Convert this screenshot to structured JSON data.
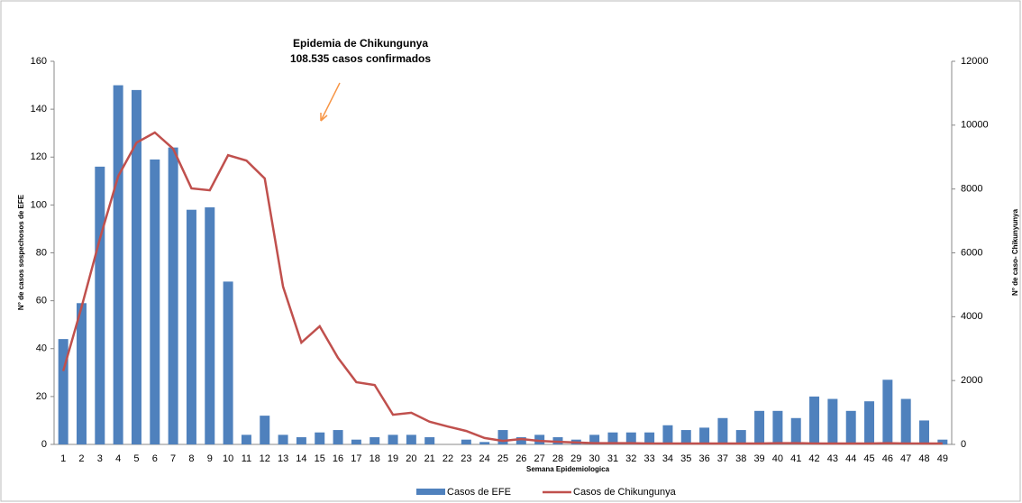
{
  "chart_data": {
    "type": "bar_line",
    "title": "Epidemia de Chikungunya",
    "subtitle": "108.535 casos confirmados",
    "x_label": "Semana Epidemiologica",
    "y_label": "N° de casos sospechosos de EFE",
    "y2_label": "N° de caso- Chikunyunya",
    "categories": [
      1,
      2,
      3,
      4,
      5,
      6,
      7,
      8,
      9,
      10,
      11,
      12,
      13,
      14,
      15,
      16,
      17,
      18,
      19,
      20,
      21,
      22,
      23,
      24,
      25,
      26,
      27,
      28,
      29,
      30,
      31,
      32,
      33,
      34,
      35,
      36,
      37,
      38,
      39,
      40,
      41,
      42,
      43,
      44,
      45,
      46,
      47,
      48,
      49
    ],
    "ylim": [
      0,
      160
    ],
    "yticks": [
      0,
      20,
      40,
      60,
      80,
      100,
      120,
      140,
      160
    ],
    "y2lim": [
      0,
      12000
    ],
    "y2ticks": [
      0,
      2000,
      4000,
      6000,
      8000,
      10000,
      12000
    ],
    "legend": "bottom",
    "series": [
      {
        "name": "Casos de EFE",
        "type": "bar",
        "color": "#4f81bd",
        "values": [
          44,
          59,
          116,
          150,
          148,
          119,
          124,
          98,
          99,
          68,
          4,
          12,
          4,
          3,
          5,
          6,
          2,
          3,
          4,
          4,
          3,
          0,
          2,
          1,
          6,
          3,
          4,
          3,
          2,
          4,
          5,
          5,
          5,
          8,
          6,
          7,
          11,
          6,
          14,
          14,
          11,
          20,
          19,
          14,
          18,
          27,
          19,
          10,
          2
        ]
      },
      {
        "name": "Casos de Chikungunya",
        "type": "line",
        "axis": "y2",
        "color": "#c0504d",
        "values": [
          2300,
          4300,
          6440,
          8400,
          9450,
          9770,
          9260,
          8020,
          7960,
          9060,
          8890,
          8330,
          4940,
          3190,
          3700,
          2710,
          1950,
          1860,
          930,
          990,
          710,
          560,
          420,
          200,
          110,
          170,
          110,
          80,
          60,
          40,
          40,
          40,
          30,
          30,
          30,
          30,
          30,
          30,
          30,
          40,
          40,
          30,
          30,
          30,
          30,
          40,
          30,
          30,
          30
        ]
      }
    ]
  }
}
